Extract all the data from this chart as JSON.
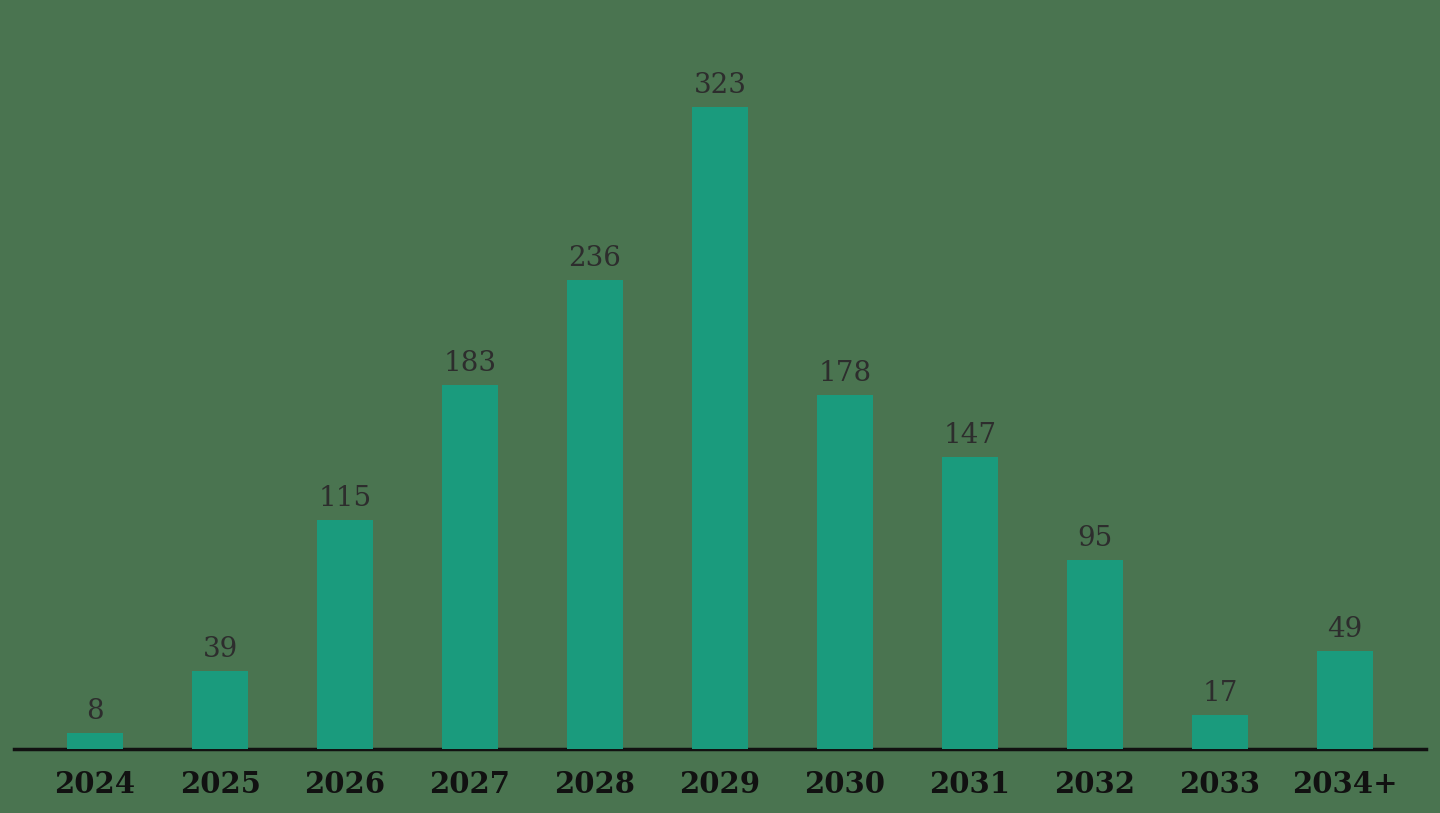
{
  "categories": [
    "2024",
    "2025",
    "2026",
    "2027",
    "2028",
    "2029",
    "2030",
    "2031",
    "2032",
    "2033",
    "2034+"
  ],
  "values": [
    8,
    39,
    115,
    183,
    236,
    323,
    178,
    147,
    95,
    17,
    49
  ],
  "bar_color": "#1a9b7d",
  "background_color": "#4a7450",
  "label_color": "#2d2d2d",
  "label_fontsize": 20,
  "xlabel_fontsize": 21,
  "bar_width": 0.45,
  "ylim": [
    0,
    370
  ]
}
